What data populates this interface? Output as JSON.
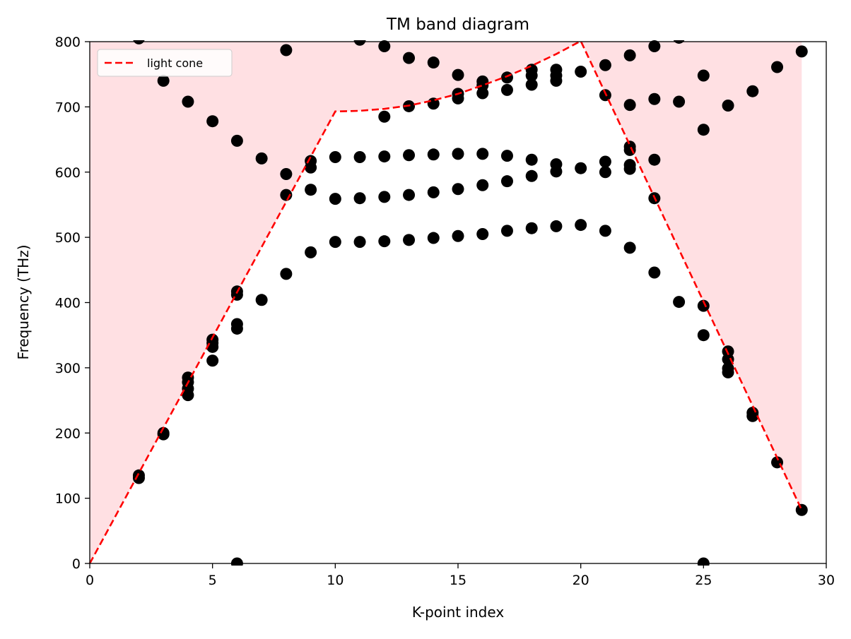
{
  "chart_data": {
    "type": "scatter",
    "title": "TM band diagram",
    "xlabel": "K-point index",
    "ylabel": "Frequency (THz)",
    "xlim": [
      0,
      30
    ],
    "ylim": [
      0,
      800
    ],
    "xticks": [
      0,
      5,
      10,
      15,
      20,
      25,
      30
    ],
    "yticks": [
      0,
      100,
      200,
      300,
      400,
      500,
      600,
      700,
      800
    ],
    "grid": false,
    "legend": {
      "placement": "top-left",
      "entries": [
        "light cone"
      ]
    },
    "colors": {
      "points": "#000000",
      "light_cone_line": "#ff0000",
      "light_cone_fill": "#ffe0e3"
    },
    "series": [
      {
        "name": "light cone",
        "kind": "line",
        "style": "dashed",
        "x": [
          0,
          10,
          11,
          12,
          13,
          14,
          15,
          16,
          17,
          18,
          19,
          20,
          29
        ],
        "y": [
          0,
          693,
          694,
          697,
          702,
          710,
          720,
          733,
          747,
          763,
          781,
          801,
          82
        ]
      },
      {
        "kind": "scatter",
        "points": [
          [
            2,
            135
          ],
          [
            2,
            131
          ],
          [
            2,
            805
          ],
          [
            3,
            200
          ],
          [
            3,
            198
          ],
          [
            3,
            740
          ],
          [
            4,
            285
          ],
          [
            4,
            278
          ],
          [
            4,
            268
          ],
          [
            4,
            258
          ],
          [
            4,
            708
          ],
          [
            5,
            343
          ],
          [
            5,
            338
          ],
          [
            5,
            332
          ],
          [
            5,
            311
          ],
          [
            5,
            678
          ],
          [
            6,
            0
          ],
          [
            6,
            417
          ],
          [
            6,
            412
          ],
          [
            6,
            367
          ],
          [
            6,
            360
          ],
          [
            6,
            648
          ],
          [
            7,
            404
          ],
          [
            7,
            621
          ],
          [
            8,
            444
          ],
          [
            8,
            565
          ],
          [
            8,
            597
          ],
          [
            8,
            787
          ],
          [
            9,
            477
          ],
          [
            9,
            573
          ],
          [
            9,
            607
          ],
          [
            9,
            617
          ],
          [
            10,
            493
          ],
          [
            10,
            559
          ],
          [
            10,
            623
          ],
          [
            11,
            493
          ],
          [
            11,
            560
          ],
          [
            11,
            623
          ],
          [
            11,
            803
          ],
          [
            12,
            494
          ],
          [
            12,
            562
          ],
          [
            12,
            624
          ],
          [
            12,
            685
          ],
          [
            12,
            793
          ],
          [
            13,
            496
          ],
          [
            13,
            565
          ],
          [
            13,
            626
          ],
          [
            13,
            701
          ],
          [
            13,
            775
          ],
          [
            14,
            499
          ],
          [
            14,
            569
          ],
          [
            14,
            627
          ],
          [
            14,
            705
          ],
          [
            14,
            768
          ],
          [
            15,
            502
          ],
          [
            15,
            574
          ],
          [
            15,
            628
          ],
          [
            15,
            713
          ],
          [
            15,
            720
          ],
          [
            15,
            749
          ],
          [
            16,
            505
          ],
          [
            16,
            580
          ],
          [
            16,
            628
          ],
          [
            16,
            721
          ],
          [
            16,
            733
          ],
          [
            16,
            739
          ],
          [
            17,
            510
          ],
          [
            17,
            586
          ],
          [
            17,
            625
          ],
          [
            17,
            726
          ],
          [
            17,
            745
          ],
          [
            18,
            514
          ],
          [
            18,
            594
          ],
          [
            18,
            619
          ],
          [
            18,
            734
          ],
          [
            18,
            748
          ],
          [
            18,
            757
          ],
          [
            19,
            517
          ],
          [
            19,
            601
          ],
          [
            19,
            612
          ],
          [
            19,
            740
          ],
          [
            19,
            748
          ],
          [
            19,
            757
          ],
          [
            20,
            519
          ],
          [
            20,
            606
          ],
          [
            20,
            754
          ],
          [
            21,
            510
          ],
          [
            21,
            600
          ],
          [
            21,
            616
          ],
          [
            21,
            718
          ],
          [
            21,
            764
          ],
          [
            22,
            484
          ],
          [
            22,
            605
          ],
          [
            22,
            611
          ],
          [
            22,
            634
          ],
          [
            22,
            639
          ],
          [
            22,
            703
          ],
          [
            22,
            779
          ],
          [
            23,
            446
          ],
          [
            23,
            560
          ],
          [
            23,
            619
          ],
          [
            23,
            712
          ],
          [
            23,
            793
          ],
          [
            24,
            401
          ],
          [
            24,
            708
          ],
          [
            24,
            806
          ],
          [
            25,
            0
          ],
          [
            25,
            350
          ],
          [
            25,
            395
          ],
          [
            25,
            665
          ],
          [
            25,
            748
          ],
          [
            26,
            293
          ],
          [
            26,
            299
          ],
          [
            26,
            313
          ],
          [
            26,
            325
          ],
          [
            26,
            702
          ],
          [
            27,
            226
          ],
          [
            27,
            231
          ],
          [
            27,
            724
          ],
          [
            28,
            155
          ],
          [
            28,
            761
          ],
          [
            29,
            82
          ],
          [
            29,
            785
          ]
        ]
      }
    ]
  }
}
